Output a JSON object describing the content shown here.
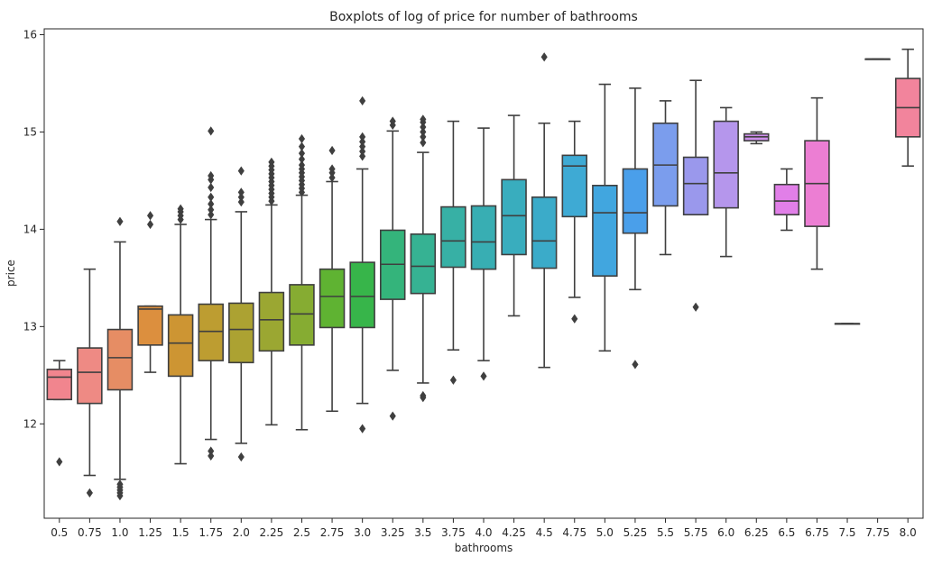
{
  "chart_data": {
    "type": "boxplot",
    "title": "Boxplots of log of price for number of bathrooms",
    "xlabel": "bathrooms",
    "ylabel": "price",
    "ylim": [
      11.03,
      16.06
    ],
    "yticks": [
      12,
      13,
      14,
      15,
      16
    ],
    "grid": false,
    "legend": "none",
    "categories": [
      "0.5",
      "0.75",
      "1.0",
      "1.25",
      "1.5",
      "1.75",
      "2.0",
      "2.25",
      "2.5",
      "2.75",
      "3.0",
      "3.25",
      "3.5",
      "3.75",
      "4.0",
      "4.25",
      "4.5",
      "4.75",
      "5.0",
      "5.25",
      "5.5",
      "5.75",
      "6.0",
      "6.25",
      "6.5",
      "6.75",
      "7.5",
      "7.75",
      "8.0"
    ],
    "boxes": [
      {
        "whislo": 12.25,
        "q1": 12.25,
        "med": 12.48,
        "q3": 12.56,
        "whishi": 12.65,
        "fliers": [
          11.61
        ],
        "color": "#f1858e"
      },
      {
        "whislo": 11.47,
        "q1": 12.21,
        "med": 12.53,
        "q3": 12.78,
        "whishi": 13.59,
        "fliers": [
          11.29
        ],
        "color": "#ee8a84"
      },
      {
        "whislo": 11.43,
        "q1": 12.35,
        "med": 12.68,
        "q3": 12.97,
        "whishi": 13.87,
        "fliers": [
          14.08,
          11.38,
          11.35,
          11.32,
          11.29,
          11.26
        ],
        "color": "#e68d64"
      },
      {
        "whislo": 12.53,
        "q1": 12.81,
        "med": 13.18,
        "q3": 13.21,
        "whishi": 13.21,
        "fliers": [
          14.05,
          14.14
        ],
        "color": "#dc8f3e"
      },
      {
        "whislo": 11.59,
        "q1": 12.49,
        "med": 12.83,
        "q3": 13.12,
        "whishi": 14.05,
        "fliers": [
          14.1,
          14.14,
          14.18,
          14.21
        ],
        "color": "#cd9533"
      },
      {
        "whislo": 11.84,
        "q1": 12.65,
        "med": 12.95,
        "q3": 13.23,
        "whishi": 14.1,
        "fliers": [
          11.72,
          11.67,
          14.15,
          14.2,
          14.26,
          14.33,
          14.43,
          14.51,
          14.55,
          15.01
        ],
        "color": "#bd9d31"
      },
      {
        "whislo": 11.8,
        "q1": 12.63,
        "med": 12.97,
        "q3": 13.24,
        "whishi": 14.18,
        "fliers": [
          11.66,
          14.28,
          14.33,
          14.38,
          14.6
        ],
        "color": "#aca232"
      },
      {
        "whislo": 11.99,
        "q1": 12.75,
        "med": 13.07,
        "q3": 13.35,
        "whishi": 14.25,
        "fliers": [
          14.29,
          14.33,
          14.37,
          14.41,
          14.45,
          14.49,
          14.53,
          14.57,
          14.61,
          14.65,
          14.69
        ],
        "color": "#9ba732"
      },
      {
        "whislo": 11.94,
        "q1": 12.81,
        "med": 13.13,
        "q3": 13.43,
        "whishi": 14.35,
        "fliers": [
          14.38,
          14.42,
          14.46,
          14.5,
          14.54,
          14.58,
          14.62,
          14.66,
          14.72,
          14.78,
          14.85,
          14.93
        ],
        "color": "#86ac32"
      },
      {
        "whislo": 12.13,
        "q1": 12.99,
        "med": 13.31,
        "q3": 13.59,
        "whishi": 14.49,
        "fliers": [
          14.53,
          14.58,
          14.62,
          14.81
        ],
        "color": "#5fb332"
      },
      {
        "whislo": 12.21,
        "q1": 12.99,
        "med": 13.31,
        "q3": 13.66,
        "whishi": 14.62,
        "fliers": [
          11.95,
          14.75,
          14.8,
          14.85,
          14.9,
          14.95,
          15.32
        ],
        "color": "#37b54a"
      },
      {
        "whislo": 12.55,
        "q1": 13.28,
        "med": 13.64,
        "q3": 13.99,
        "whishi": 15.01,
        "fliers": [
          12.08,
          15.07,
          15.11
        ],
        "color": "#34b47b"
      },
      {
        "whislo": 12.42,
        "q1": 13.34,
        "med": 13.62,
        "q3": 13.95,
        "whishi": 14.79,
        "fliers": [
          12.29,
          12.27,
          14.89,
          14.95,
          15.0,
          15.05,
          15.1,
          15.13
        ],
        "color": "#36b293"
      },
      {
        "whislo": 12.76,
        "q1": 13.61,
        "med": 13.88,
        "q3": 14.23,
        "whishi": 15.11,
        "fliers": [
          12.45
        ],
        "color": "#37b0a5"
      },
      {
        "whislo": 12.65,
        "q1": 13.59,
        "med": 13.87,
        "q3": 14.24,
        "whishi": 15.04,
        "fliers": [
          12.49
        ],
        "color": "#38aeb3"
      },
      {
        "whislo": 13.11,
        "q1": 13.74,
        "med": 14.14,
        "q3": 14.51,
        "whishi": 15.17,
        "fliers": [],
        "color": "#39adbe"
      },
      {
        "whislo": 12.58,
        "q1": 13.6,
        "med": 13.88,
        "q3": 14.33,
        "whishi": 15.09,
        "fliers": [
          15.77
        ],
        "color": "#3babc9"
      },
      {
        "whislo": 13.3,
        "q1": 14.13,
        "med": 14.65,
        "q3": 14.76,
        "whishi": 15.11,
        "fliers": [
          13.08
        ],
        "color": "#3eaad4"
      },
      {
        "whislo": 12.75,
        "q1": 13.52,
        "med": 14.17,
        "q3": 14.45,
        "whishi": 15.49,
        "fliers": [],
        "color": "#41a6df"
      },
      {
        "whislo": 13.38,
        "q1": 13.96,
        "med": 14.17,
        "q3": 14.62,
        "whishi": 15.45,
        "fliers": [
          12.61
        ],
        "color": "#4a9fea"
      },
      {
        "whislo": 13.74,
        "q1": 14.24,
        "med": 14.66,
        "q3": 15.09,
        "whishi": 15.32,
        "fliers": [],
        "color": "#7b9ded"
      },
      {
        "whislo": 14.15,
        "q1": 14.15,
        "med": 14.47,
        "q3": 14.74,
        "whishi": 15.53,
        "fliers": [
          13.2
        ],
        "color": "#9a98ec"
      },
      {
        "whislo": 13.72,
        "q1": 14.22,
        "med": 14.58,
        "q3": 15.11,
        "whishi": 15.25,
        "fliers": [],
        "color": "#b596ec"
      },
      {
        "whislo": 14.88,
        "q1": 14.91,
        "med": 14.95,
        "q3": 14.98,
        "whishi": 15.0,
        "fliers": [],
        "color": "#cd8fea"
      },
      {
        "whislo": 13.99,
        "q1": 14.15,
        "med": 14.29,
        "q3": 14.46,
        "whishi": 14.62,
        "fliers": [],
        "color": "#e17fe8"
      },
      {
        "whislo": 13.59,
        "q1": 14.03,
        "med": 14.47,
        "q3": 14.91,
        "whishi": 15.35,
        "fliers": [],
        "color": "#ec7ed3"
      },
      {
        "whislo": 13.03,
        "q1": 13.03,
        "med": 13.03,
        "q3": 13.03,
        "whishi": 13.03,
        "fliers": [],
        "color": "#ef80bf"
      },
      {
        "whislo": 15.75,
        "q1": 15.75,
        "med": 15.75,
        "q3": 15.75,
        "whishi": 15.75,
        "fliers": [],
        "color": "#f083ac"
      },
      {
        "whislo": 14.65,
        "q1": 14.95,
        "med": 15.25,
        "q3": 15.55,
        "whishi": 15.85,
        "fliers": [],
        "color": "#f2849c"
      }
    ]
  }
}
